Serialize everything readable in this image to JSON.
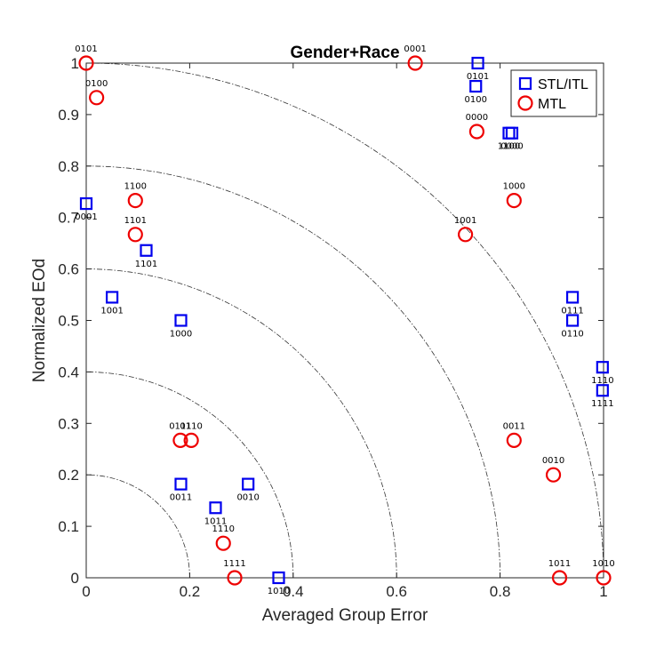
{
  "chart_data": {
    "type": "scatter",
    "title": "Gender+Race",
    "xlabel": "Averaged Group Error",
    "ylabel": "Normalized EOd",
    "xlim": [
      0,
      1
    ],
    "ylim": [
      0,
      1
    ],
    "xticks": [
      "0",
      "0.2",
      "0.4",
      "0.6",
      "0.8",
      "1"
    ],
    "yticks": [
      "0",
      "0.1",
      "0.2",
      "0.3",
      "0.4",
      "0.5",
      "0.6",
      "0.7",
      "0.8",
      "0.9",
      "1"
    ],
    "reference_arcs": [
      0.2,
      0.4,
      0.6,
      0.8,
      1.0
    ],
    "legend_position": "top-right",
    "series": [
      {
        "name": "STL/ITL",
        "marker": "square",
        "color": "#0000ee",
        "points": [
          {
            "label": "0001",
            "x": 0.0,
            "y": 0.727
          },
          {
            "label": "1101",
            "x": 0.116,
            "y": 0.636
          },
          {
            "label": "1001",
            "x": 0.05,
            "y": 0.545
          },
          {
            "label": "1000",
            "x": 0.183,
            "y": 0.5
          },
          {
            "label": "0011",
            "x": 0.183,
            "y": 0.182
          },
          {
            "label": "0010",
            "x": 0.313,
            "y": 0.182
          },
          {
            "label": "1011",
            "x": 0.25,
            "y": 0.136
          },
          {
            "label": "1010",
            "x": 0.372,
            "y": 0.0
          },
          {
            "label": "0101",
            "x": 0.757,
            "y": 1.0
          },
          {
            "label": "0100",
            "x": 0.753,
            "y": 0.955
          },
          {
            "label": "1100",
            "x": 0.817,
            "y": 0.864
          },
          {
            "label": "0000",
            "x": 0.823,
            "y": 0.864
          },
          {
            "label": "0111",
            "x": 0.94,
            "y": 0.545
          },
          {
            "label": "0110",
            "x": 0.94,
            "y": 0.5
          },
          {
            "label": "1110",
            "x": 0.998,
            "y": 0.409
          },
          {
            "label": "1111",
            "x": 0.998,
            "y": 0.364
          }
        ]
      },
      {
        "name": "MTL",
        "marker": "circle",
        "color": "#ee0000",
        "points": [
          {
            "label": "0101",
            "x": 0.0,
            "y": 1.0
          },
          {
            "label": "0100",
            "x": 0.02,
            "y": 0.933
          },
          {
            "label": "1100",
            "x": 0.095,
            "y": 0.733
          },
          {
            "label": "1101",
            "x": 0.095,
            "y": 0.667
          },
          {
            "label": "0111",
            "x": 0.182,
            "y": 0.267
          },
          {
            "label": "0110",
            "x": 0.203,
            "y": 0.267
          },
          {
            "label": "1110",
            "x": 0.265,
            "y": 0.067
          },
          {
            "label": "1111",
            "x": 0.287,
            "y": 0.0
          },
          {
            "label": "0001",
            "x": 0.636,
            "y": 1.0
          },
          {
            "label": "0000",
            "x": 0.755,
            "y": 0.867
          },
          {
            "label": "1000",
            "x": 0.827,
            "y": 0.733
          },
          {
            "label": "1001",
            "x": 0.733,
            "y": 0.667
          },
          {
            "label": "0011",
            "x": 0.827,
            "y": 0.267
          },
          {
            "label": "0010",
            "x": 0.903,
            "y": 0.2
          },
          {
            "label": "1011",
            "x": 0.915,
            "y": 0.0
          },
          {
            "label": "1010",
            "x": 1.0,
            "y": 0.0
          }
        ]
      }
    ]
  }
}
